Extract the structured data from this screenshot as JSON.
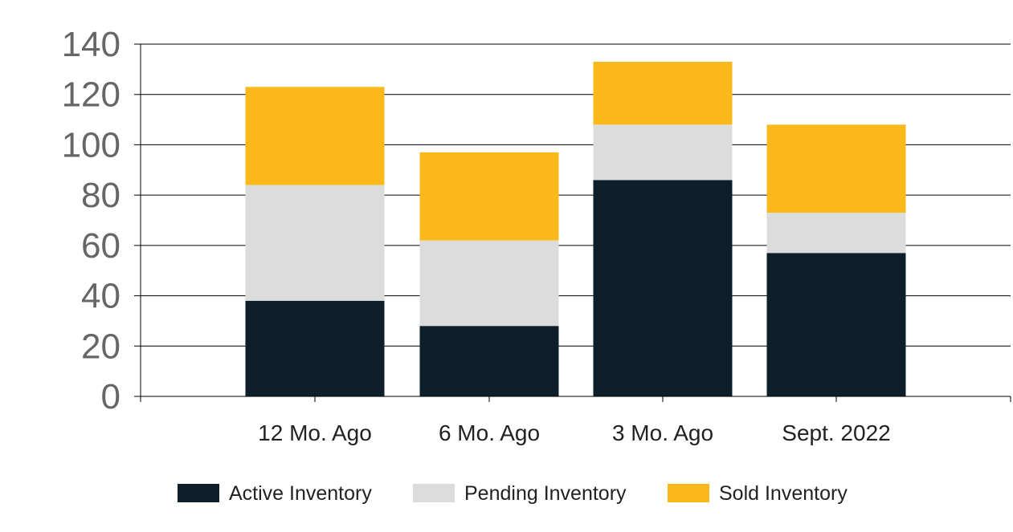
{
  "chart_data": {
    "type": "bar",
    "stacked": true,
    "categories": [
      "12 Mo. Ago",
      "6 Mo. Ago",
      "3 Mo. Ago",
      "Sept. 2022"
    ],
    "series": [
      {
        "name": "Active Inventory",
        "values": [
          38,
          28,
          86,
          57
        ],
        "color": "#0d1f2a"
      },
      {
        "name": "Pending Inventory",
        "values": [
          46,
          34,
          22,
          16
        ],
        "color": "#dcdcdc"
      },
      {
        "name": "Sold Inventory",
        "values": [
          39,
          35,
          25,
          35
        ],
        "color": "#fbb81b"
      }
    ],
    "yticks": [
      "0",
      "20",
      "40",
      "60",
      "80",
      "100",
      "120",
      "140"
    ],
    "ylim": [
      0,
      140
    ],
    "grid": true,
    "legend_position": "bottom"
  }
}
